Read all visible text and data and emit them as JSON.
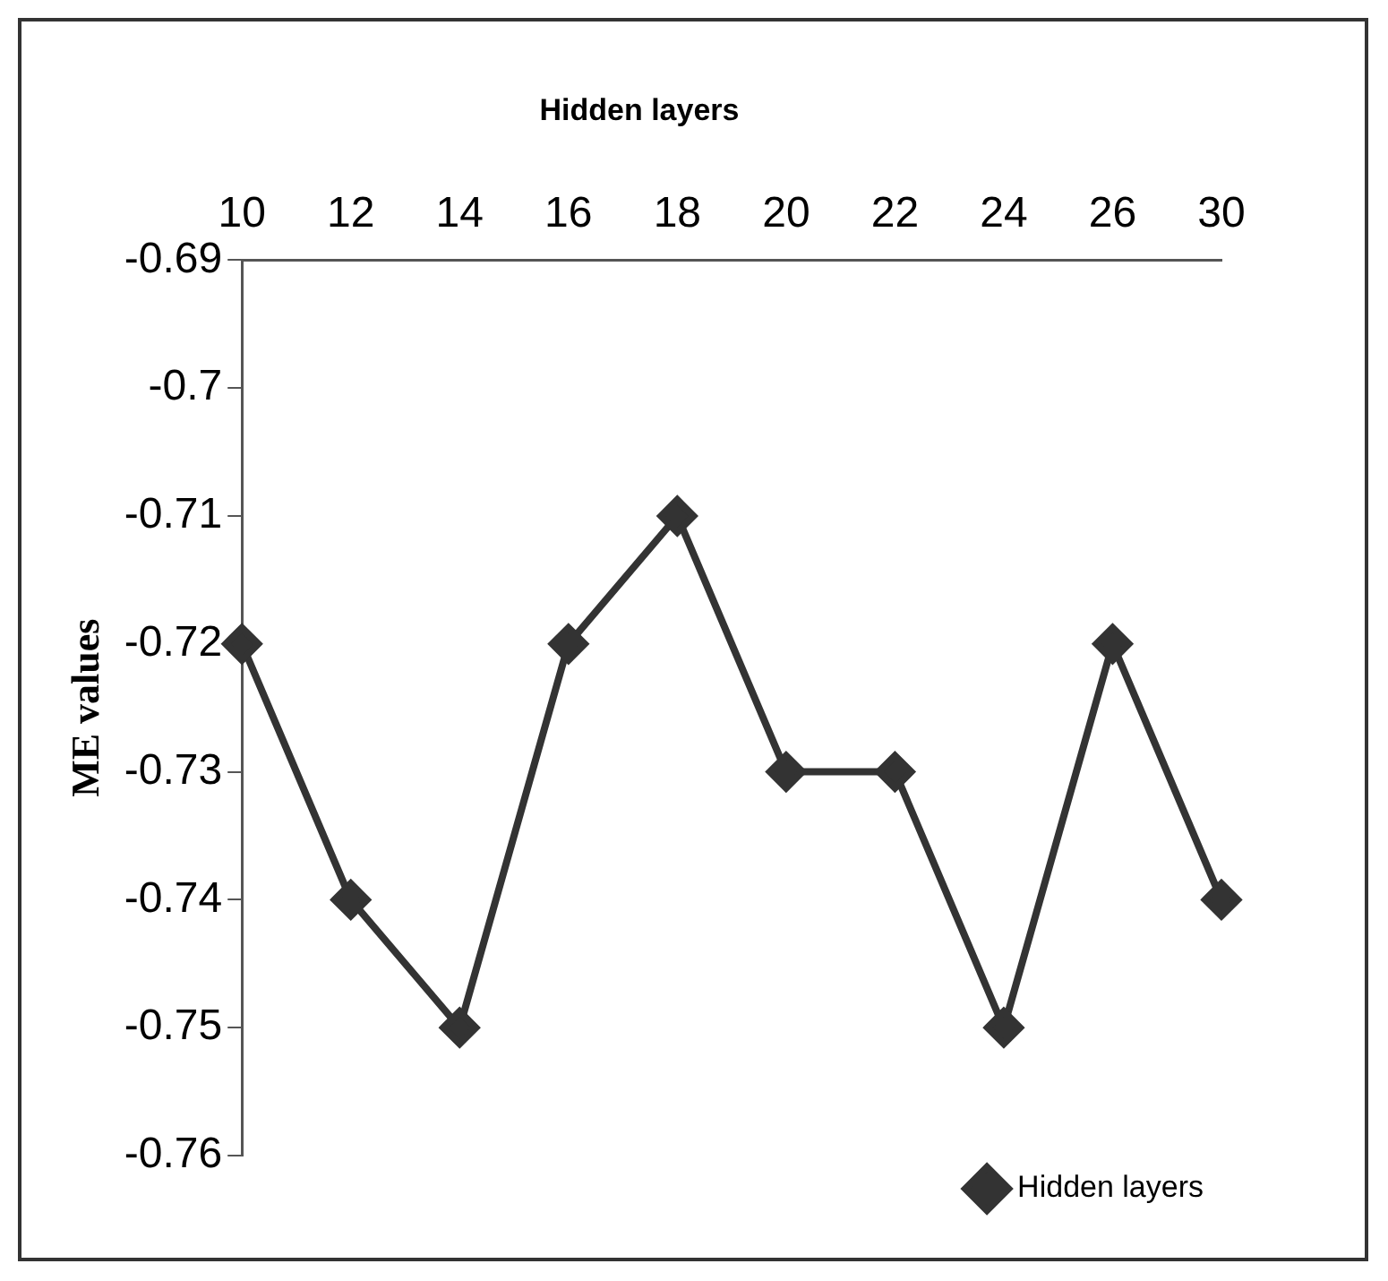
{
  "chart_data": {
    "type": "line",
    "title": "Hidden layers",
    "ylabel": "ME values",
    "categories": [
      "10",
      "12",
      "14",
      "16",
      "18",
      "20",
      "22",
      "24",
      "26",
      "30"
    ],
    "series": [
      {
        "name": "Hidden layers",
        "color": "#333333",
        "values": [
          -0.72,
          -0.74,
          -0.75,
          -0.72,
          -0.71,
          -0.73,
          -0.73,
          -0.75,
          -0.72,
          -0.74
        ]
      }
    ],
    "ylim": [
      -0.76,
      -0.69
    ],
    "yticks": [
      -0.69,
      -0.7,
      -0.71,
      -0.72,
      -0.73,
      -0.74,
      -0.75,
      -0.76
    ],
    "marker": "diamond",
    "line_style": "solid",
    "grid": false,
    "legend": "bottom right"
  }
}
